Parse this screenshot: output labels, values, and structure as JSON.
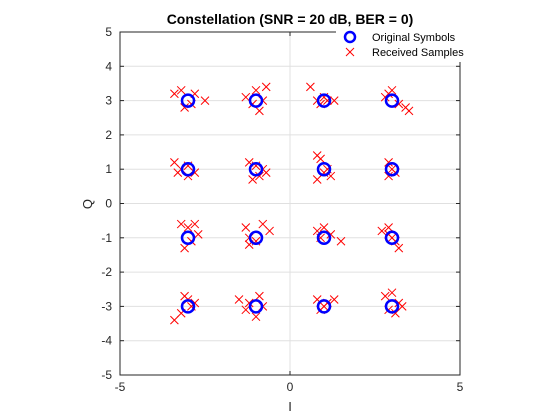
{
  "chart_data": {
    "type": "scatter",
    "title": "Constellation (SNR = 20 dB, BER = 0)",
    "xlabel": "I",
    "ylabel": "Q",
    "xlim": [
      -5,
      5
    ],
    "ylim": [
      -5,
      5
    ],
    "xticks": [
      -5,
      0,
      5
    ],
    "yticks": [
      -5,
      -4,
      -3,
      -2,
      -1,
      0,
      1,
      2,
      3,
      4,
      5
    ],
    "grid": true,
    "legend_position": "top-right",
    "colors": {
      "symbols": "#0000ff",
      "samples": "#ff0000",
      "grid": "#e0e0e0",
      "axis": "#262626"
    },
    "series": [
      {
        "name": "Original Symbols",
        "marker": "circle",
        "x": [
          -3,
          -1,
          1,
          3,
          -3,
          -1,
          1,
          3,
          -3,
          -1,
          1,
          3,
          -3,
          -1,
          1,
          3
        ],
        "y": [
          3,
          3,
          3,
          3,
          1,
          1,
          1,
          1,
          -1,
          -1,
          -1,
          -1,
          -3,
          -3,
          -3,
          -3
        ]
      },
      {
        "name": "Received Samples",
        "marker": "x",
        "x": [
          -3.4,
          -3.2,
          -2.8,
          -2.5,
          -2.9,
          -3.1,
          -1.3,
          -1.0,
          -0.7,
          -0.8,
          -1.1,
          -0.9,
          0.6,
          0.8,
          1.0,
          1.3,
          0.9,
          1.1,
          2.9,
          3.0,
          3.2,
          3.4,
          3.5,
          2.8,
          -3.4,
          -3.2,
          -3.0,
          -2.8,
          -3.3,
          -3.0,
          -1.2,
          -1.0,
          -0.8,
          -0.9,
          -1.1,
          -0.7,
          0.8,
          0.9,
          1.0,
          1.2,
          0.8,
          1.1,
          2.9,
          3.0,
          3.1,
          2.9,
          -3.2,
          -3.0,
          -2.8,
          -2.7,
          -3.1,
          -2.9,
          -1.3,
          -1.2,
          -0.8,
          -0.6,
          -1.0,
          -1.2,
          0.8,
          1.0,
          1.2,
          1.5,
          0.9,
          2.7,
          2.9,
          3.1,
          3.2,
          2.9,
          3.0,
          -3.4,
          -3.2,
          -3.0,
          -2.8,
          -3.1,
          -2.9,
          -1.5,
          -1.3,
          -1.0,
          -0.9,
          -1.2,
          -0.8,
          0.8,
          0.9,
          1.0,
          1.3,
          1.1,
          2.8,
          3.0,
          3.2,
          3.1,
          3.3,
          2.9
        ],
        "y": [
          3.2,
          3.3,
          3.2,
          3.0,
          2.9,
          2.8,
          3.1,
          3.3,
          3.4,
          3.0,
          2.9,
          2.7,
          3.4,
          3.0,
          3.1,
          3.0,
          2.9,
          3.0,
          3.2,
          3.3,
          2.9,
          2.8,
          2.7,
          3.1,
          1.2,
          1.0,
          0.8,
          0.9,
          0.9,
          1.1,
          1.2,
          1.1,
          1.0,
          0.8,
          0.7,
          0.9,
          1.4,
          1.3,
          0.9,
          0.8,
          0.7,
          1.0,
          1.2,
          1.0,
          0.9,
          0.8,
          -0.6,
          -0.7,
          -0.6,
          -0.9,
          -1.3,
          -1.1,
          -0.7,
          -1.0,
          -0.6,
          -0.8,
          -1.1,
          -1.2,
          -0.8,
          -0.7,
          -0.9,
          -1.1,
          -1.0,
          -0.8,
          -0.9,
          -1.1,
          -1.3,
          -0.7,
          -1.0,
          -3.4,
          -3.2,
          -2.8,
          -2.9,
          -2.7,
          -3.0,
          -2.8,
          -3.1,
          -3.3,
          -2.7,
          -2.9,
          -3.0,
          -2.8,
          -3.1,
          -3.0,
          -2.8,
          -2.9,
          -2.7,
          -2.6,
          -2.9,
          -3.2,
          -3.0,
          -3.1
        ]
      }
    ]
  }
}
